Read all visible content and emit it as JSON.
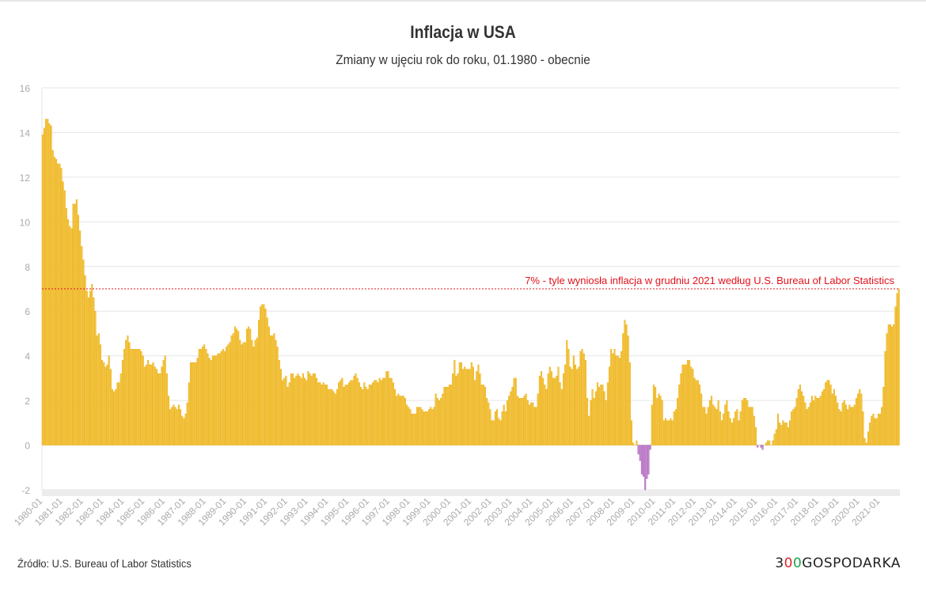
{
  "header": {
    "title": "Inflacja w USA",
    "subtitle": "Zmiany w ujęciu rok do roku, 01.1980 - obecnie"
  },
  "footer": {
    "source": "Źródło: U.S. Bureau of Labor Statistics",
    "logo": "300GOSPODARKA"
  },
  "colors": {
    "positive_fill": "#f3c545",
    "positive_stroke": "#eaa900",
    "negative_fill": "#c58bd0",
    "negative_stroke": "#a457b3",
    "annotation": "#e3111b",
    "grid": "#e6e6e6"
  },
  "chart_data": {
    "type": "bar",
    "title": "Inflacja w USA",
    "subtitle": "Zmiany w ujęciu rok do roku, 01.1980 - obecnie",
    "frequency": "monthly",
    "first_month": "1980-01",
    "last_month": "2021-12",
    "ylim": [
      -2,
      16
    ],
    "y_ticks": [
      "-2",
      "0",
      "2",
      "4",
      "6",
      "8",
      "10",
      "12",
      "14",
      "16"
    ],
    "grid": true,
    "x_tick_labels": [
      "1980-01",
      "1981-01",
      "1982-01",
      "1983-01",
      "1984-01",
      "1985-01",
      "1986-01",
      "1987-01",
      "1988-01",
      "1989-01",
      "1990-01",
      "1991-01",
      "1992-01",
      "1993-01",
      "1994-01",
      "1995-01",
      "1996-01",
      "1997-01",
      "1998-01",
      "1999-01",
      "2000-01",
      "2001-01",
      "2002-01",
      "2003-01",
      "2004-01",
      "2005-01",
      "2006-01",
      "2007-01",
      "2008-01",
      "2009-01",
      "2010-01",
      "2011-01",
      "2012-01",
      "2013-01",
      "2014-01",
      "2015-01",
      "2016-01",
      "2017-01",
      "2018-01",
      "2019-01",
      "2020-01",
      "2021-01"
    ],
    "reference_line": {
      "value": 7,
      "label": "7% - tyle wyniosła inflacja w grudniu 2021 według U.S. Bureau of Labor Statistics"
    },
    "values": [
      13.9,
      14.2,
      14.6,
      14.6,
      14.4,
      14.3,
      13.2,
      12.9,
      12.8,
      12.6,
      12.6,
      12.4,
      11.8,
      11.4,
      10.6,
      10.1,
      9.8,
      9.7,
      10.8,
      10.8,
      11.0,
      10.3,
      9.6,
      8.9,
      8.3,
      7.6,
      6.9,
      6.6,
      6.9,
      7.2,
      6.6,
      6.0,
      4.9,
      5.0,
      4.5,
      3.8,
      3.7,
      3.5,
      3.6,
      4.0,
      3.4,
      2.5,
      2.4,
      2.5,
      2.8,
      2.8,
      3.2,
      3.8,
      4.3,
      4.7,
      4.9,
      4.6,
      4.3,
      4.3,
      4.3,
      4.3,
      4.3,
      4.3,
      4.2,
      4.0,
      3.5,
      3.6,
      3.8,
      3.6,
      3.6,
      3.7,
      3.5,
      3.4,
      3.2,
      3.2,
      3.5,
      3.8,
      4.0,
      3.2,
      2.2,
      1.6,
      1.7,
      1.8,
      1.7,
      1.6,
      1.8,
      1.6,
      1.3,
      1.2,
      1.4,
      1.9,
      2.8,
      3.7,
      3.7,
      3.7,
      3.7,
      3.9,
      4.3,
      4.3,
      4.4,
      4.5,
      4.3,
      4.1,
      3.9,
      3.8,
      4.0,
      4.0,
      4.0,
      4.1,
      4.1,
      4.2,
      4.3,
      4.2,
      4.4,
      4.5,
      4.6,
      4.9,
      5.0,
      5.3,
      5.2,
      5.1,
      4.7,
      4.5,
      4.6,
      4.6,
      5.2,
      5.3,
      5.2,
      4.7,
      4.4,
      4.7,
      4.8,
      5.6,
      6.2,
      6.3,
      6.3,
      6.1,
      5.7,
      5.3,
      4.9,
      4.9,
      5.0,
      4.7,
      4.4,
      3.8,
      3.4,
      2.9,
      3.0,
      3.1,
      2.6,
      2.8,
      3.2,
      3.2,
      3.0,
      3.1,
      3.2,
      3.1,
      3.0,
      3.2,
      3.0,
      2.9,
      3.3,
      3.2,
      3.1,
      3.2,
      3.2,
      3.0,
      2.8,
      2.8,
      2.7,
      2.8,
      2.7,
      2.7,
      2.5,
      2.5,
      2.5,
      2.4,
      2.3,
      2.5,
      2.8,
      2.9,
      3.0,
      2.6,
      2.7,
      2.7,
      2.8,
      2.9,
      2.9,
      3.1,
      3.2,
      3.0,
      2.8,
      2.6,
      2.5,
      2.8,
      2.6,
      2.5,
      2.7,
      2.7,
      2.8,
      2.9,
      2.9,
      2.8,
      3.0,
      2.9,
      3.0,
      3.0,
      3.3,
      3.3,
      3.0,
      3.0,
      2.8,
      2.5,
      2.2,
      2.3,
      2.2,
      2.2,
      2.2,
      2.1,
      1.8,
      1.7,
      1.6,
      1.4,
      1.4,
      1.4,
      1.7,
      1.7,
      1.7,
      1.6,
      1.5,
      1.5,
      1.5,
      1.6,
      1.7,
      1.6,
      1.7,
      2.3,
      2.1,
      2.0,
      2.1,
      2.3,
      2.6,
      2.6,
      2.6,
      2.7,
      2.7,
      3.2,
      3.8,
      3.1,
      3.2,
      3.7,
      3.7,
      3.4,
      3.5,
      3.4,
      3.4,
      3.4,
      3.7,
      3.5,
      2.9,
      3.3,
      3.6,
      3.2,
      2.7,
      2.7,
      2.6,
      2.1,
      1.9,
      1.6,
      1.1,
      1.1,
      1.5,
      1.6,
      1.2,
      1.1,
      1.5,
      1.8,
      1.5,
      2.0,
      2.2,
      2.4,
      2.6,
      3.0,
      3.0,
      2.2,
      2.1,
      2.1,
      2.1,
      2.2,
      2.3,
      2.0,
      1.8,
      1.9,
      1.9,
      1.7,
      1.7,
      2.3,
      3.1,
      3.3,
      3.0,
      2.7,
      2.5,
      3.2,
      3.5,
      3.3,
      3.0,
      3.0,
      3.1,
      3.5,
      2.8,
      2.5,
      3.2,
      3.6,
      4.7,
      4.3,
      3.5,
      3.4,
      4.0,
      3.6,
      3.4,
      3.5,
      4.2,
      4.3,
      4.1,
      3.8,
      2.1,
      1.3,
      2.0,
      2.5,
      2.1,
      2.4,
      2.8,
      2.6,
      2.7,
      2.7,
      2.4,
      2.0,
      2.8,
      3.5,
      4.3,
      4.1,
      4.3,
      4.0,
      4.0,
      3.9,
      4.2,
      5.0,
      5.6,
      5.4,
      4.9,
      3.7,
      1.1,
      0.1,
      0.0,
      0.2,
      -0.4,
      -0.7,
      -1.3,
      -1.4,
      -2.0,
      -1.5,
      -1.3,
      -0.2,
      1.8,
      2.7,
      2.6,
      2.1,
      2.3,
      2.2,
      2.0,
      1.1,
      1.2,
      1.1,
      1.1,
      1.2,
      1.1,
      1.5,
      1.6,
      2.1,
      2.7,
      3.2,
      3.6,
      3.6,
      3.6,
      3.8,
      3.8,
      3.5,
      3.4,
      3.0,
      2.9,
      2.9,
      2.7,
      2.3,
      1.7,
      1.7,
      1.4,
      1.7,
      2.0,
      2.2,
      1.8,
      1.7,
      1.6,
      2.0,
      1.5,
      1.1,
      1.4,
      1.8,
      2.0,
      1.5,
      1.2,
      1.0,
      1.2,
      1.5,
      1.6,
      1.1,
      1.5,
      2.0,
      2.1,
      2.1,
      2.0,
      1.7,
      1.7,
      1.7,
      1.3,
      0.8,
      -0.1,
      0.0,
      -0.1,
      -0.2,
      0.0,
      0.1,
      0.2,
      0.2,
      0.0,
      0.2,
      0.5,
      0.7,
      1.4,
      1.0,
      0.9,
      1.1,
      1.0,
      1.0,
      0.8,
      1.1,
      1.5,
      1.6,
      1.7,
      2.1,
      2.5,
      2.7,
      2.4,
      2.2,
      1.9,
      1.6,
      1.7,
      1.9,
      2.2,
      2.0,
      2.2,
      2.1,
      2.1,
      2.2,
      2.4,
      2.5,
      2.8,
      2.9,
      2.9,
      2.7,
      2.3,
      2.5,
      2.2,
      1.9,
      1.6,
      1.5,
      1.9,
      2.0,
      1.8,
      1.6,
      1.8,
      1.7,
      1.7,
      1.8,
      2.1,
      2.3,
      2.5,
      2.3,
      1.5,
      0.3,
      0.1,
      0.6,
      1.0,
      1.3,
      1.4,
      1.2,
      1.2,
      1.4,
      1.4,
      1.7,
      2.6,
      4.2,
      5.0,
      5.4,
      5.4,
      5.3,
      5.4,
      6.2,
      6.8,
      7.0
    ]
  }
}
